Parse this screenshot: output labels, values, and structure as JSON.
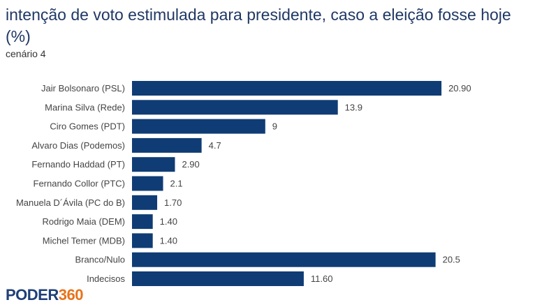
{
  "header": {
    "title": "intenção de voto estimulada para presidente, caso a eleição fosse hoje (%)",
    "subtitle": "cenário 4"
  },
  "brand": {
    "name_part1": "PODER",
    "name_part2": "360",
    "color_primary": "#1f3f77",
    "color_accent": "#e8731a"
  },
  "chart_data": {
    "type": "bar",
    "orientation": "horizontal",
    "bar_color": "#0f3c74",
    "categories": [
      "Jair Bolsonaro (PSL)",
      "Marina Silva (Rede)",
      "Ciro Gomes (PDT)",
      "Alvaro Dias (Podemos)",
      "Fernando Haddad (PT)",
      "Fernando Collor (PTC)",
      "Manuela D´Ávila (PC do B)",
      "Rodrigo Maia (DEM)",
      "Michel Temer (MDB)",
      "Branco/Nulo",
      "Indecisos"
    ],
    "values": [
      20.9,
      13.9,
      9,
      4.7,
      2.9,
      2.1,
      1.7,
      1.4,
      1.4,
      20.5,
      11.6
    ],
    "value_labels": [
      "20.90",
      "13.9",
      "9",
      "4.7",
      "2.90",
      "2.1",
      "1.70",
      "1.40",
      "1.40",
      "20.5",
      "11.60"
    ],
    "xlim": [
      0,
      21
    ],
    "grid": false,
    "legend": "none"
  }
}
